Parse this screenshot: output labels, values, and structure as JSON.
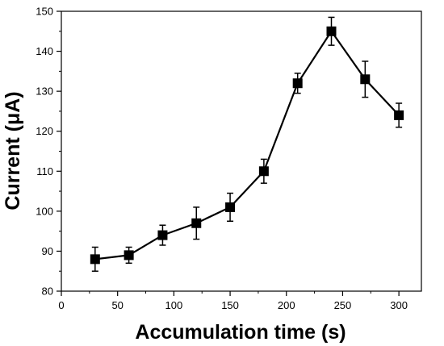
{
  "chart_data": {
    "type": "line",
    "xlabel": "Accumulation time (s)",
    "ylabel": "Current (μA)",
    "xlim": [
      0,
      320
    ],
    "ylim": [
      80,
      150
    ],
    "xticks": [
      0,
      50,
      100,
      150,
      200,
      250,
      300
    ],
    "yticks": [
      80,
      90,
      100,
      110,
      120,
      130,
      140,
      150
    ],
    "grid": false,
    "marker": "square",
    "series": [
      {
        "x": [
          30,
          60,
          90,
          120,
          150,
          180,
          210,
          240,
          270,
          300
        ],
        "y": [
          88,
          89,
          94,
          97,
          101,
          110,
          132,
          145,
          133,
          124
        ],
        "yerr": [
          3,
          2,
          2.5,
          4,
          3.5,
          3,
          2.5,
          3.5,
          4.5,
          3
        ],
        "color": "#000000"
      }
    ]
  }
}
